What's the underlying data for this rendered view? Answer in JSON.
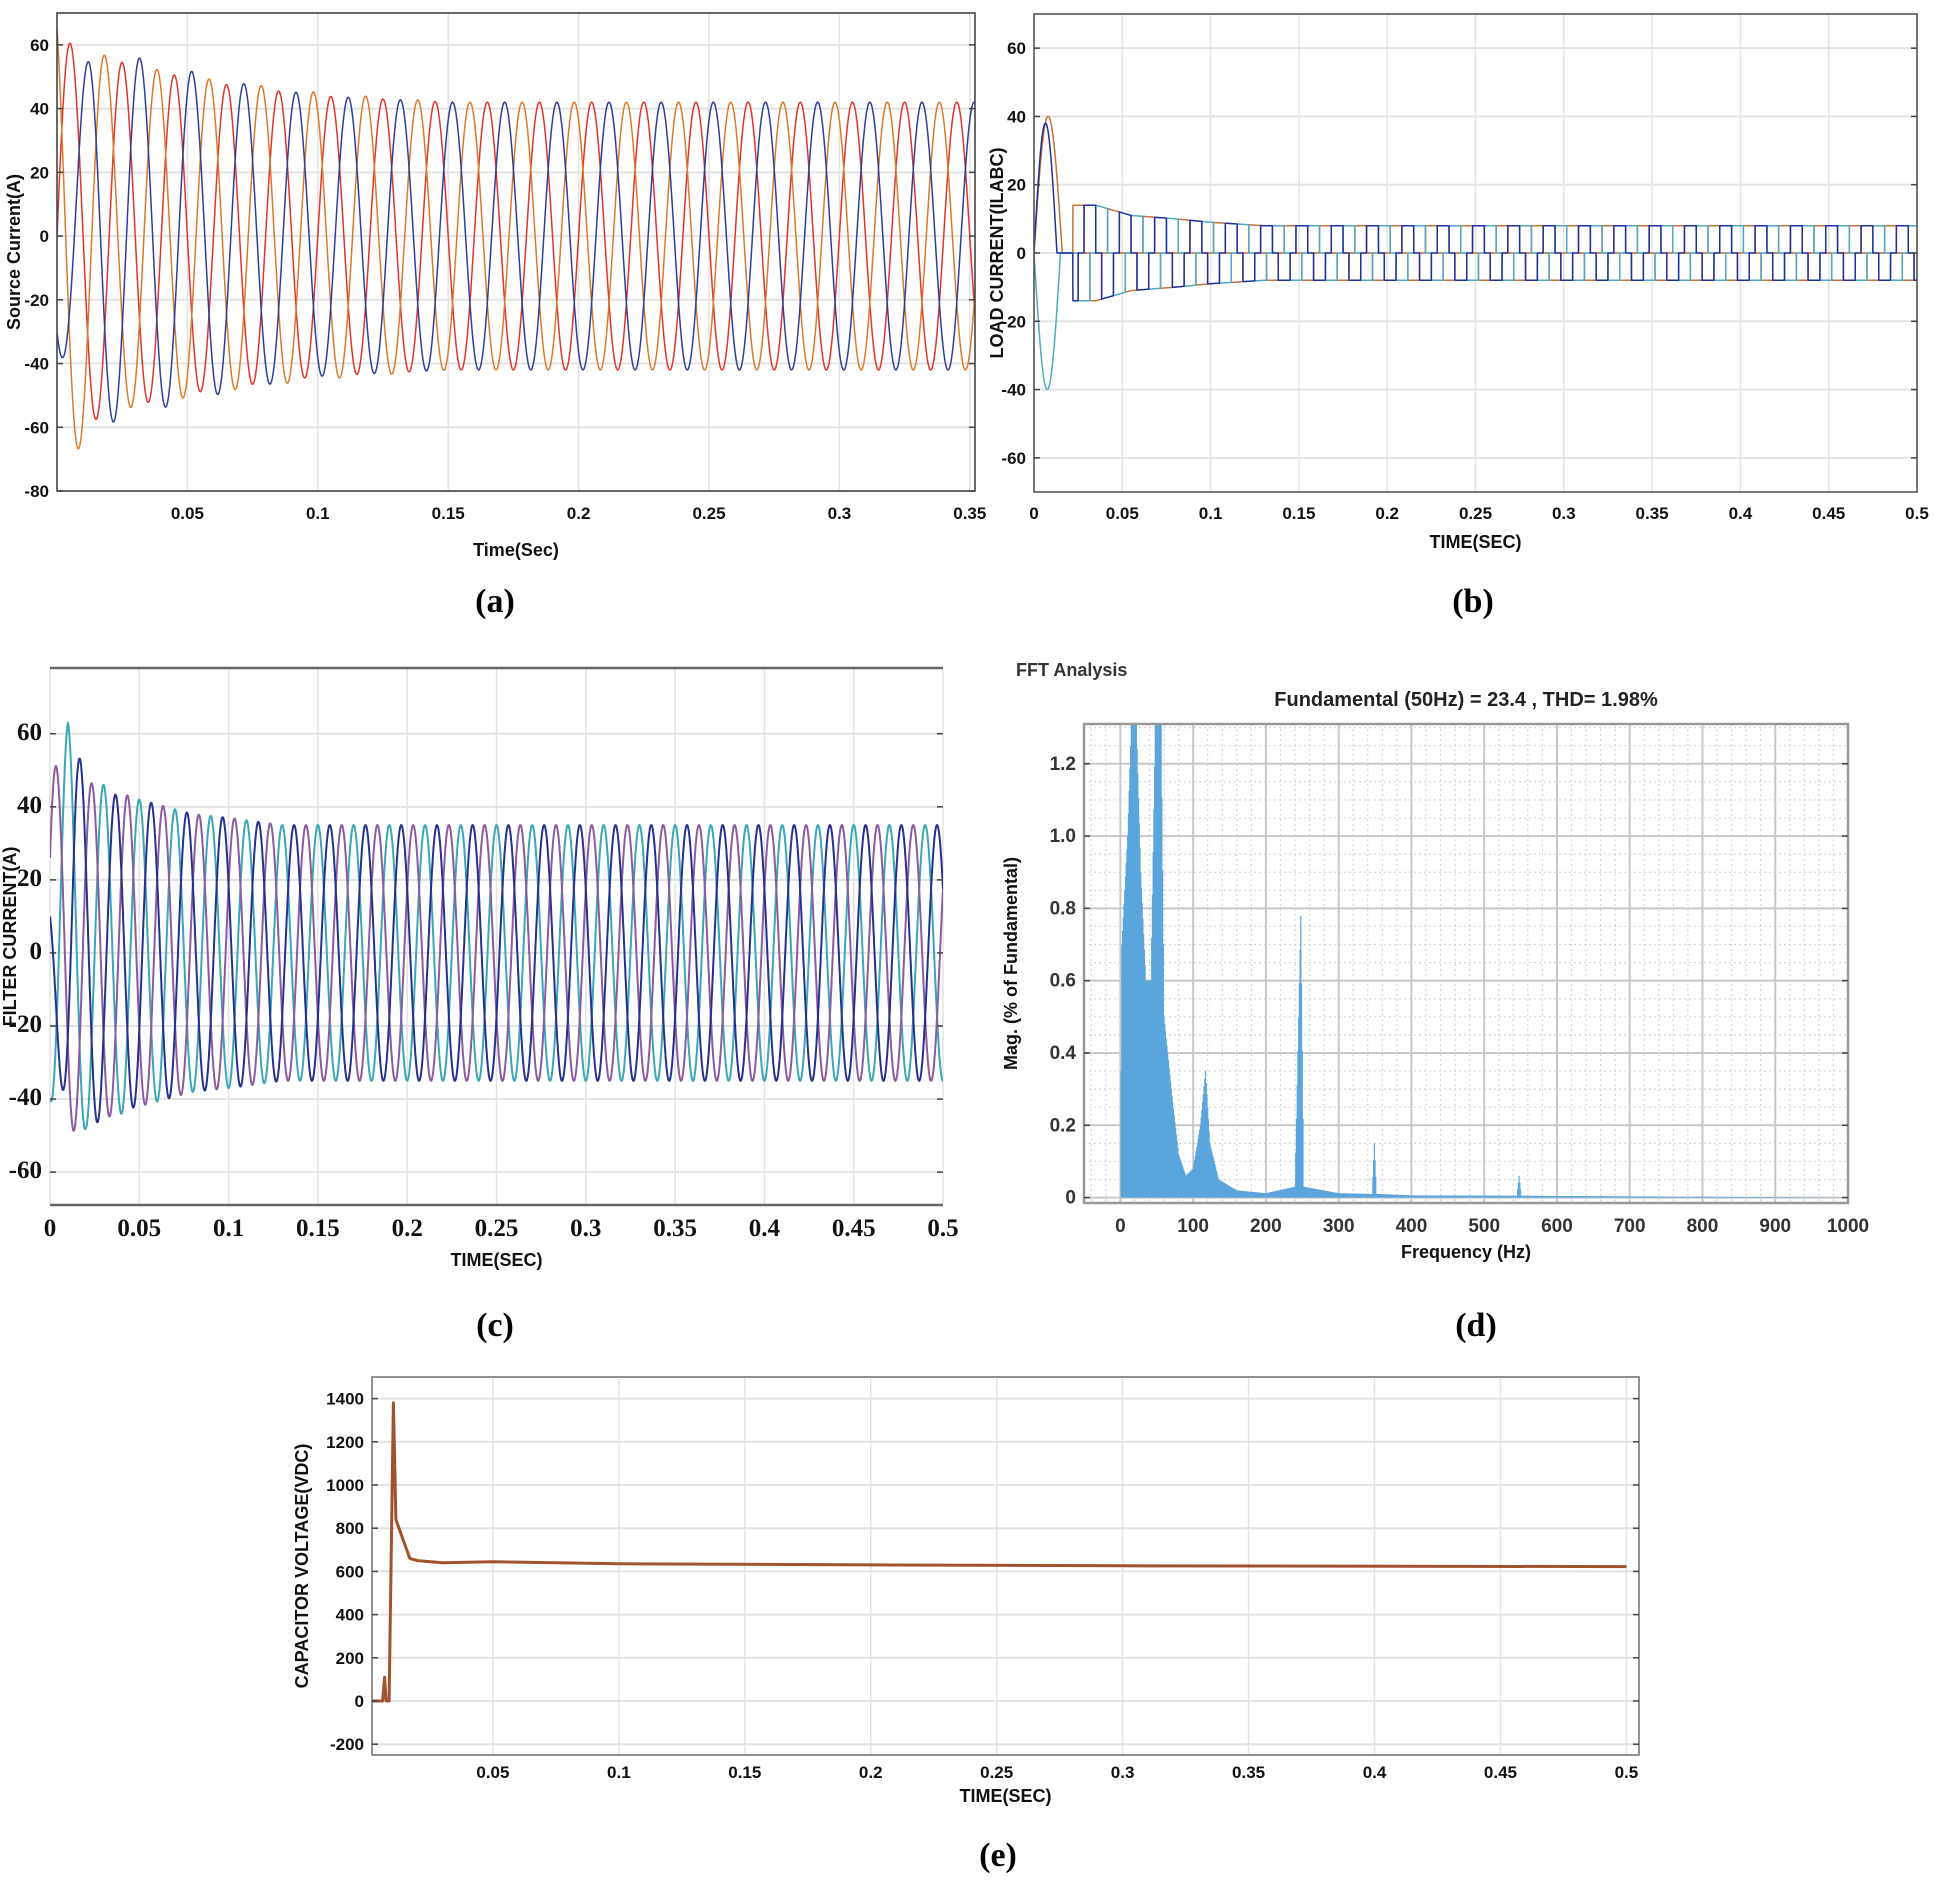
{
  "chart_data": [
    {
      "panel_label": "(a)",
      "type": "line",
      "xlabel": "Time(Sec)",
      "ylabel": "Source Current(A)",
      "xlim": [
        0,
        0.352
      ],
      "ylim": [
        -80,
        70
      ],
      "xticks": [
        0.05,
        0.1,
        0.15,
        0.2,
        0.25,
        0.3,
        0.35
      ],
      "xtick_labels": [
        "0.05",
        "0.1",
        "0.15",
        "0.2",
        "0.25",
        "0.3",
        "0.35"
      ],
      "yticks": [
        -80,
        -60,
        -40,
        -20,
        0,
        20,
        40,
        60
      ],
      "ytick_labels": [
        "-80",
        "-60",
        "-40",
        "-20",
        "0",
        "20",
        "40",
        "60"
      ],
      "grid": true,
      "waveform": "sine",
      "frequency_hz": 50,
      "series": [
        {
          "color": "#e0342c",
          "phase_deg": 0,
          "envelope": [
            [
              0,
              62
            ],
            [
              0.03,
              53
            ],
            [
              0.06,
              48
            ],
            [
              0.1,
              44
            ],
            [
              0.15,
              42
            ],
            [
              0.352,
              42
            ]
          ]
        },
        {
          "color": "#d97a2b",
          "phase_deg": 120,
          "envelope": [
            [
              0,
              75
            ],
            [
              0.02,
              55
            ],
            [
              0.06,
              49
            ],
            [
              0.1,
              45
            ],
            [
              0.15,
              42
            ],
            [
              0.352,
              42
            ]
          ]
        },
        {
          "color": "#2c3f96",
          "phase_deg": -120,
          "envelope": [
            [
              0,
              35
            ],
            [
              0.015,
              60
            ],
            [
              0.035,
              55
            ],
            [
              0.07,
              48
            ],
            [
              0.1,
              44
            ],
            [
              0.15,
              42
            ],
            [
              0.352,
              42
            ]
          ]
        }
      ]
    },
    {
      "panel_label": "(b)",
      "type": "line",
      "xlabel": "TIME(SEC)",
      "ylabel": "LOAD CURRENT(ILABC)",
      "xlim": [
        0,
        0.5
      ],
      "ylim": [
        -70,
        70
      ],
      "xticks": [
        0,
        0.05,
        0.1,
        0.15,
        0.2,
        0.25,
        0.3,
        0.35,
        0.4,
        0.45,
        0.5
      ],
      "xtick_labels": [
        "0",
        "0.05",
        "0.1",
        "0.15",
        "0.2",
        "0.25",
        "0.3",
        "0.35",
        "0.4",
        "0.45",
        "0.5"
      ],
      "yticks": [
        -60,
        -40,
        -20,
        0,
        20,
        40,
        60
      ],
      "ytick_labels": [
        "-60",
        "-40",
        "-20",
        "0",
        "20",
        "40",
        "60"
      ],
      "grid": true,
      "waveform": "quasi-square",
      "frequency_hz": 50,
      "series": [
        {
          "color": "#c4733a",
          "phase_deg": 0,
          "initial_pulse": {
            "peak": 40,
            "end": 0.016
          },
          "start": 0.022,
          "envelope": [
            [
              0.022,
              14
            ],
            [
              0.035,
              14
            ],
            [
              0.055,
              11
            ],
            [
              0.08,
              10
            ],
            [
              0.1,
              9
            ],
            [
              0.13,
              8
            ],
            [
              0.5,
              8
            ]
          ]
        },
        {
          "color": "#4eaac2",
          "phase_deg": 120,
          "initial_pulse": {
            "peak": -40,
            "end": 0.015
          },
          "start": 0.022,
          "envelope": [
            [
              0.022,
              14
            ],
            [
              0.035,
              14
            ],
            [
              0.055,
              11
            ],
            [
              0.08,
              10
            ],
            [
              0.1,
              9
            ],
            [
              0.13,
              8
            ],
            [
              0.5,
              8
            ]
          ]
        },
        {
          "color": "#1f2fa0",
          "phase_deg": -120,
          "initial_pulse": {
            "peak": 38,
            "end": 0.013
          },
          "start": 0.022,
          "envelope": [
            [
              0.022,
              14
            ],
            [
              0.035,
              14
            ],
            [
              0.055,
              11
            ],
            [
              0.08,
              10
            ],
            [
              0.1,
              9
            ],
            [
              0.13,
              8
            ],
            [
              0.5,
              8
            ]
          ]
        }
      ]
    },
    {
      "panel_label": "(c)",
      "type": "line",
      "xlabel": "TIME(SEC)",
      "ylabel": "FILTER CURRENT(A)",
      "xlim": [
        0,
        0.5
      ],
      "ylim": [
        -69,
        78
      ],
      "xticks": [
        0,
        0.05,
        0.1,
        0.15,
        0.2,
        0.25,
        0.3,
        0.35,
        0.4,
        0.45,
        0.5
      ],
      "xtick_labels": [
        "0",
        "0.05",
        "0.1",
        "0.15",
        "0.2",
        "0.25",
        "0.3",
        "0.35",
        "0.4",
        "0.45",
        "0.5"
      ],
      "yticks": [
        -60,
        -40,
        -20,
        0,
        20,
        40,
        60
      ],
      "ytick_labels": [
        "-60",
        "-40",
        "-20",
        "0",
        "20",
        "40",
        "60"
      ],
      "grid": true,
      "waveform": "sine",
      "frequency_hz": 50,
      "series": [
        {
          "color": "#3aa7b5",
          "phase_deg": -90,
          "envelope": [
            [
              0,
              40
            ],
            [
              0.01,
              63
            ],
            [
              0.02,
              48
            ],
            [
              0.05,
              42
            ],
            [
              0.08,
              38
            ],
            [
              0.1,
              37
            ],
            [
              0.13,
              35
            ],
            [
              0.5,
              35
            ]
          ]
        },
        {
          "color": "#8c5a9f",
          "phase_deg": 30,
          "envelope": [
            [
              0,
              52
            ],
            [
              0.02,
              47
            ],
            [
              0.05,
              42
            ],
            [
              0.08,
              38
            ],
            [
              0.1,
              37
            ],
            [
              0.13,
              35
            ],
            [
              0.5,
              35
            ]
          ]
        },
        {
          "color": "#25308f",
          "phase_deg": 150,
          "envelope": [
            [
              0,
              20
            ],
            [
              0.014,
              55
            ],
            [
              0.03,
              44
            ],
            [
              0.05,
              42
            ],
            [
              0.08,
              38
            ],
            [
              0.1,
              37
            ],
            [
              0.13,
              35
            ],
            [
              0.5,
              35
            ]
          ]
        }
      ]
    },
    {
      "panel_label": "(d)",
      "type": "bar",
      "suptitle": "FFT Analysis",
      "title": "Fundamental (50Hz) = 23.4 , THD= 1.98%",
      "xlabel": "Frequency (Hz)",
      "ylabel": "Mag. (% of Fundamental)",
      "xlim": [
        -50,
        1000
      ],
      "ylim": [
        -0.015,
        1.31
      ],
      "xticks": [
        0,
        100,
        200,
        300,
        400,
        500,
        600,
        700,
        800,
        900,
        1000
      ],
      "xtick_labels": [
        "0",
        "100",
        "200",
        "300",
        "400",
        "500",
        "600",
        "700",
        "800",
        "900",
        "1000"
      ],
      "yticks": [
        0,
        0.2,
        0.4,
        0.6,
        0.8,
        1.0,
        1.2
      ],
      "ytick_labels": [
        "0",
        "0.2",
        "0.4",
        "0.6",
        "0.8",
        "1.0",
        "1.2"
      ],
      "grid": true,
      "color": "#5aa6dc",
      "spectrum": [
        [
          0,
          0
        ],
        [
          2,
          0.7
        ],
        [
          10,
          1.0
        ],
        [
          15,
          1.31
        ],
        [
          22,
          1.31
        ],
        [
          28,
          0.9
        ],
        [
          35,
          0.6
        ],
        [
          42,
          0.6
        ],
        [
          48,
          1.31
        ],
        [
          56,
          1.31
        ],
        [
          60,
          0.5
        ],
        [
          70,
          0.3
        ],
        [
          80,
          0.12
        ],
        [
          90,
          0.06
        ],
        [
          100,
          0.08
        ],
        [
          110,
          0.2
        ],
        [
          117,
          0.35
        ],
        [
          123,
          0.15
        ],
        [
          135,
          0.05
        ],
        [
          160,
          0.02
        ],
        [
          200,
          0.012
        ],
        [
          240,
          0.03
        ],
        [
          248,
          0.78
        ],
        [
          252,
          0.03
        ],
        [
          300,
          0.012
        ],
        [
          346,
          0.01
        ],
        [
          349,
          0.15
        ],
        [
          352,
          0.01
        ],
        [
          400,
          0.006
        ],
        [
          545,
          0.005
        ],
        [
          548,
          0.06
        ],
        [
          551,
          0.005
        ],
        [
          1000,
          0
        ]
      ]
    },
    {
      "panel_label": "(e)",
      "type": "line",
      "xlabel": "TIME(SEC)",
      "ylabel": "CAPACITOR VOLTAGE(VDC)",
      "xlim": [
        0.002,
        0.505
      ],
      "ylim": [
        -250,
        1500
      ],
      "xticks": [
        0.05,
        0.1,
        0.15,
        0.2,
        0.25,
        0.3,
        0.35,
        0.4,
        0.45,
        0.5
      ],
      "xtick_labels": [
        "0.05",
        "0.1",
        "0.15",
        "0.2",
        "0.25",
        "0.3",
        "0.35",
        "0.4",
        "0.45",
        "0.5"
      ],
      "yticks": [
        -200,
        0,
        200,
        400,
        600,
        800,
        1000,
        1200,
        1400
      ],
      "ytick_labels": [
        "-200",
        "0",
        "200",
        "400",
        "600",
        "800",
        "1000",
        "1200",
        "1400"
      ],
      "grid": true,
      "series": [
        {
          "color": "#a0522d",
          "points": [
            [
              0.002,
              0
            ],
            [
              0.0062,
              0
            ],
            [
              0.007,
              110
            ],
            [
              0.0076,
              0
            ],
            [
              0.0088,
              0
            ],
            [
              0.0105,
              1380
            ],
            [
              0.0115,
              840
            ],
            [
              0.017,
              660
            ],
            [
              0.02,
              650
            ],
            [
              0.03,
              640
            ],
            [
              0.05,
              645
            ],
            [
              0.1,
              635
            ],
            [
              0.2,
              630
            ],
            [
              0.3,
              626
            ],
            [
              0.5,
              622
            ]
          ]
        }
      ]
    }
  ]
}
